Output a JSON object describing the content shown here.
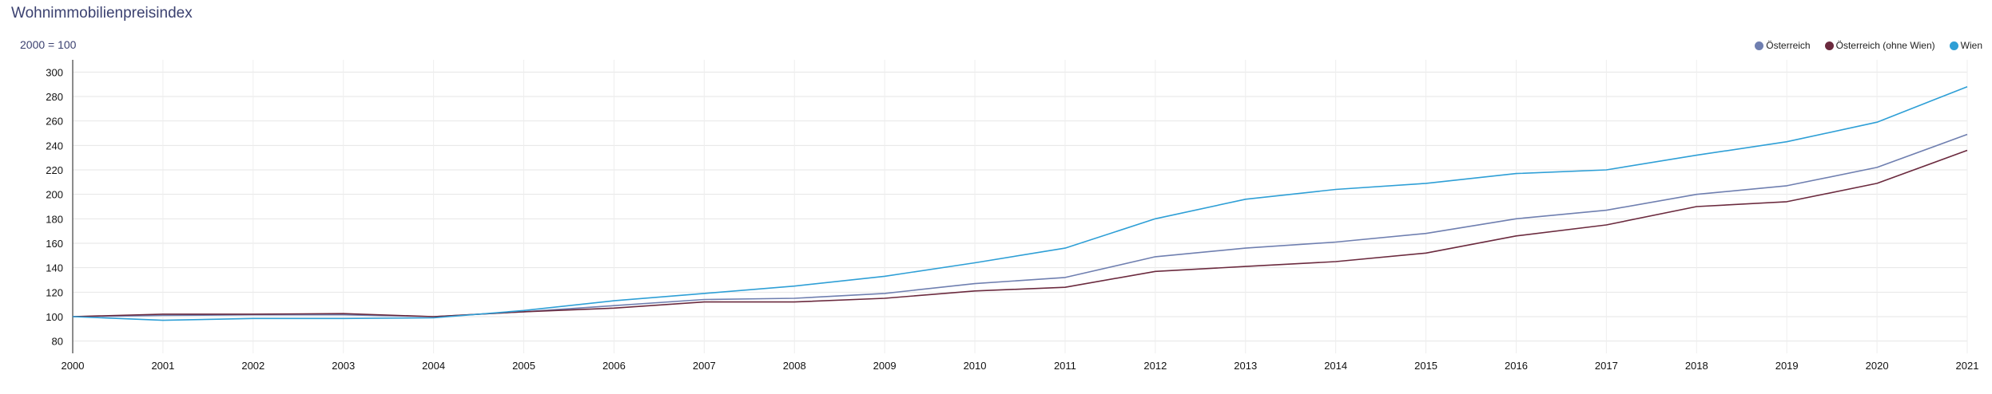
{
  "chart_data": {
    "type": "line",
    "title": "Wohnimmobilienpreisindex",
    "subtitle": "2000 = 100",
    "x": [
      "2000",
      "2001",
      "2002",
      "2003",
      "2004",
      "2005",
      "2006",
      "2007",
      "2008",
      "2009",
      "2010",
      "2011",
      "2012",
      "2013",
      "2014",
      "2015",
      "2016",
      "2017",
      "2018",
      "2019",
      "2020",
      "2021"
    ],
    "ylim": [
      70,
      310
    ],
    "yticks": [
      80,
      100,
      120,
      140,
      160,
      180,
      200,
      220,
      240,
      260,
      280,
      300
    ],
    "grid": true,
    "legend_position": "top-right",
    "series": [
      {
        "name": "Österreich",
        "color": "#6f7fb0",
        "values": [
          100,
          101,
          101.5,
          101.5,
          100,
          104,
          109,
          114,
          115,
          119,
          127,
          132,
          149,
          156,
          161,
          168,
          180,
          187,
          200,
          207,
          222,
          249
        ]
      },
      {
        "name": "Österreich (ohne Wien)",
        "color": "#6b2a3e",
        "values": [
          100,
          102,
          102,
          102.5,
          100,
          104,
          107,
          112,
          112,
          115,
          121,
          124,
          137,
          141,
          145,
          152,
          166,
          175,
          190,
          194,
          209,
          236
        ]
      },
      {
        "name": "Wien",
        "color": "#2e9fd6",
        "values": [
          100,
          97,
          98.5,
          98.5,
          99,
          105,
          113,
          119,
          125,
          133,
          144,
          156,
          180,
          196,
          204,
          209,
          217,
          220,
          232,
          243,
          259,
          288
        ]
      }
    ]
  }
}
